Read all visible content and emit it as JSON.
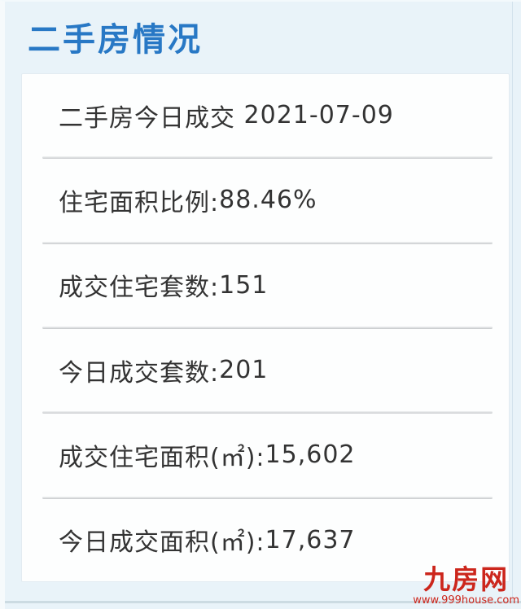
{
  "header": {
    "title": "二手房情况"
  },
  "panel": {
    "rows": [
      {
        "label": "二手房今日成交 ",
        "value": "2021-07-09"
      },
      {
        "label": "住宅面积比例:",
        "value": "88.46%"
      },
      {
        "label": "成交住宅套数:",
        "value": "151"
      },
      {
        "label": "今日成交套数:",
        "value": "201"
      },
      {
        "label": "成交住宅面积(㎡):",
        "value": "15,602"
      },
      {
        "label": "今日成交面积(㎡):",
        "value": "17,637"
      }
    ]
  },
  "branding": {
    "logo": "九房网",
    "website": "www.999house.com"
  },
  "colors": {
    "title_blue": "#2878c5",
    "background_blue": "#e9f3f9",
    "panel_white": "#fdfefe",
    "text_dark": "#333333",
    "divider_gray": "#c6c9cb",
    "brand_red": "#cc261c"
  }
}
